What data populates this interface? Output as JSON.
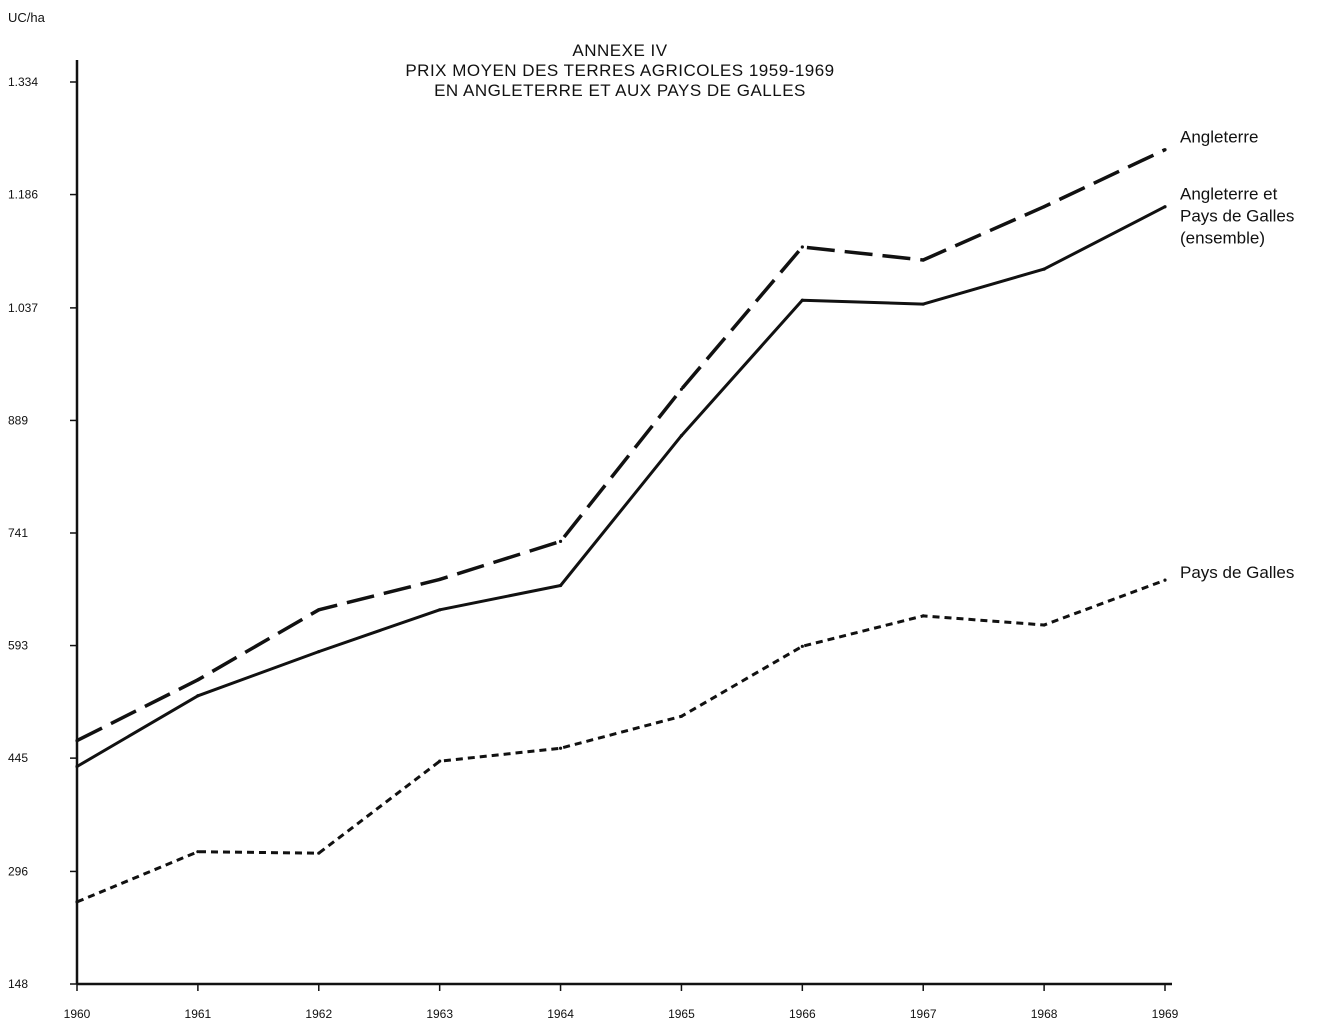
{
  "chart_data": {
    "type": "line",
    "title_lines": [
      "ANNEXE IV",
      "PRIX MOYEN DES TERRES AGRICOLES 1959-1969",
      "EN ANGLETERRE ET AUX PAYS DE GALLES"
    ],
    "ylabel": "UC/ha",
    "xlabel": "",
    "x": [
      1960,
      1961,
      1962,
      1963,
      1964,
      1965,
      1966,
      1967,
      1968,
      1969
    ],
    "x_tick_labels": [
      "1960",
      "1961",
      "1962",
      "1963",
      "1964",
      "1965",
      "1966",
      "1967",
      "1968",
      "1969"
    ],
    "y_ticks": [
      148,
      296,
      445,
      593,
      741,
      889,
      1037,
      1186,
      1334
    ],
    "y_tick_labels": [
      "148",
      "296",
      "445",
      "593",
      "741",
      "889",
      "1.037",
      "1.186",
      "1.334"
    ],
    "xlim": [
      1960,
      1969
    ],
    "ylim": [
      148,
      1334
    ],
    "grid": false,
    "series": [
      {
        "name": "Angleterre",
        "label_lines": [
          "Angleterre"
        ],
        "style": "dashed",
        "values": [
          468,
          548,
          640,
          680,
          730,
          930,
          1117,
          1100,
          1170,
          1245
        ]
      },
      {
        "name": "Angleterre et Pays de Galles (ensemble)",
        "label_lines": [
          "Angleterre et",
          "Pays de Galles",
          "(ensemble)"
        ],
        "style": "solid",
        "values": [
          434,
          527,
          585,
          640,
          672,
          869,
          1047,
          1042,
          1088,
          1170
        ]
      },
      {
        "name": "Pays de Galles",
        "label_lines": [
          "Pays de Galles"
        ],
        "style": "dotted",
        "values": [
          256,
          322,
          320,
          441,
          458,
          500,
          592,
          632,
          620,
          679
        ]
      }
    ]
  }
}
